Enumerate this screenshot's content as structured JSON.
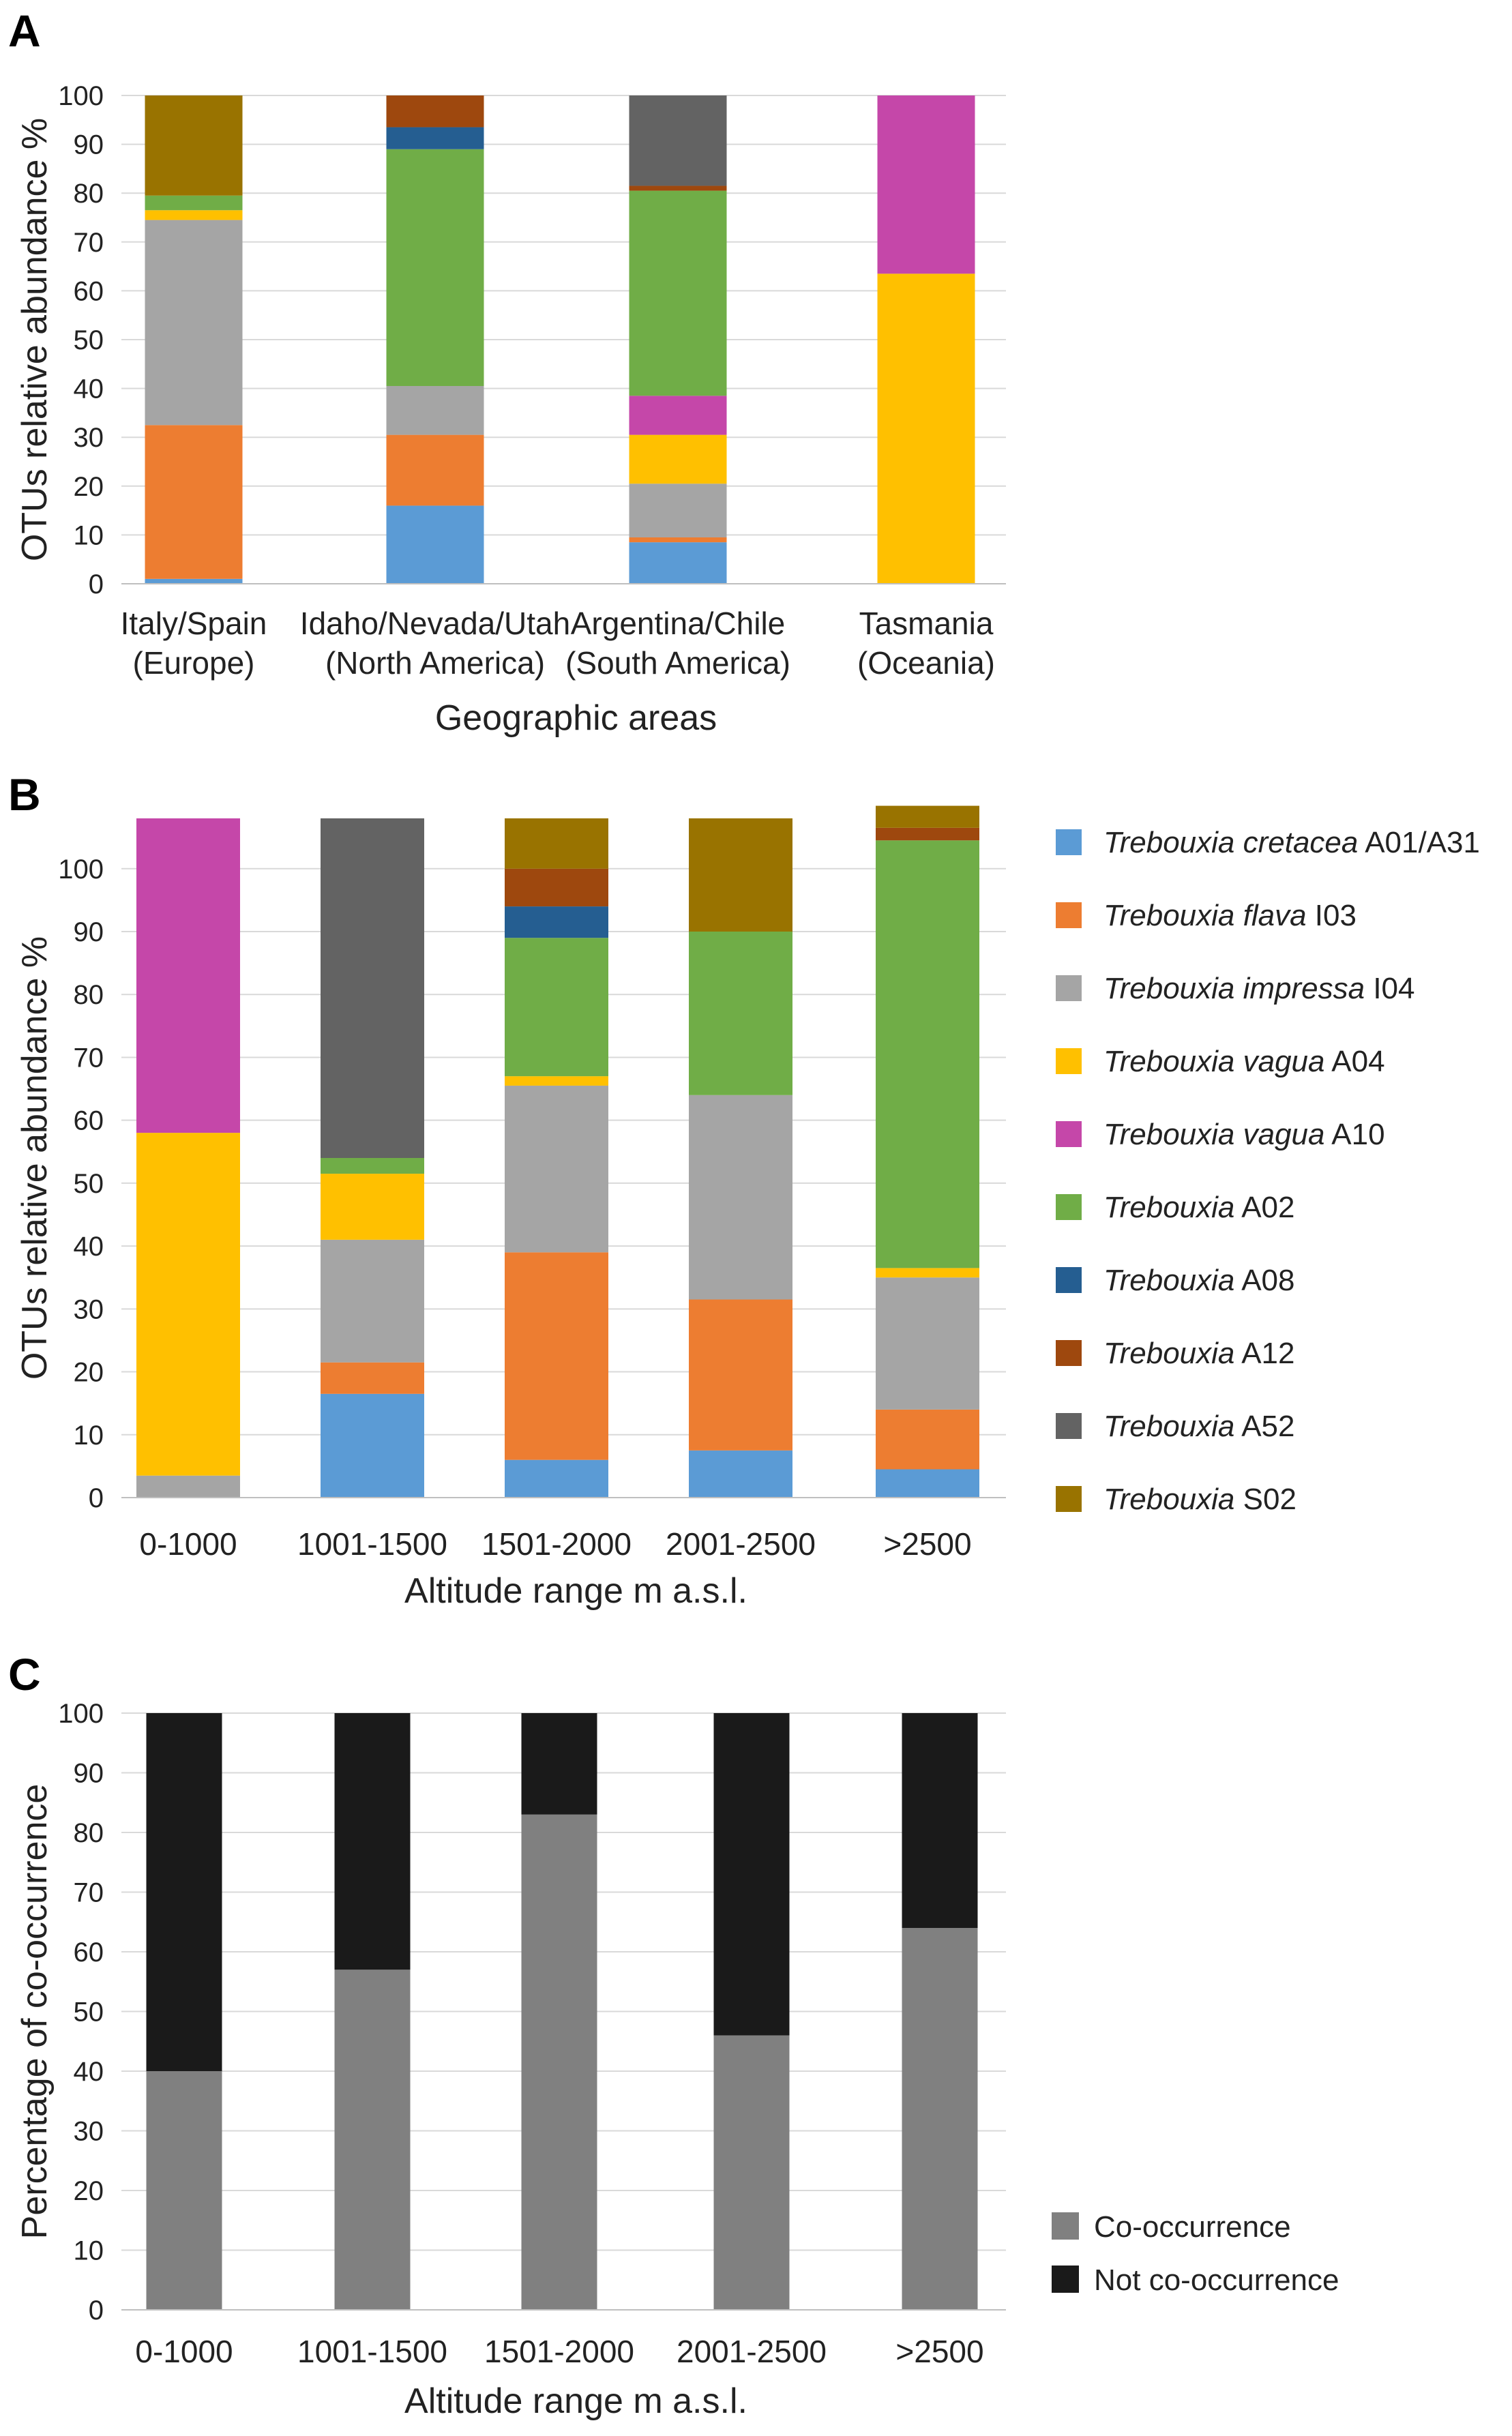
{
  "species": [
    {
      "key": "cretacea",
      "italic": "Trebouxia cretacea",
      "suffix": " A01/A31",
      "color": "#5b9bd5"
    },
    {
      "key": "flava",
      "italic": "Trebouxia flava",
      "suffix": " I03",
      "color": "#ed7d31"
    },
    {
      "key": "impressa",
      "italic": "Trebouxia impressa",
      "suffix": " I04",
      "color": "#a5a5a5"
    },
    {
      "key": "vagua_A04",
      "italic": "Trebouxia vagua",
      "suffix": " A04",
      "color": "#ffc000"
    },
    {
      "key": "vagua_A10",
      "italic": "Trebouxia vagua",
      "suffix": " A10",
      "color": "#c547a9"
    },
    {
      "key": "A02",
      "italic": "Trebouxia",
      "suffix": " A02",
      "color": "#70ad47"
    },
    {
      "key": "A08",
      "italic": "Trebouxia",
      "suffix": " A08",
      "color": "#255e91"
    },
    {
      "key": "A12",
      "italic": "Trebouxia",
      "suffix": " A12",
      "color": "#9e480e"
    },
    {
      "key": "A52",
      "italic": "Trebouxia",
      "suffix": " A52",
      "color": "#636363"
    },
    {
      "key": "S02",
      "italic": "Trebouxia",
      "suffix": " S02",
      "color": "#997300"
    }
  ],
  "chart_data": [
    {
      "panel": "A",
      "type": "bar",
      "stacked": true,
      "ylabel": "OTUs relative abundance %",
      "xlabel": "Geographic areas",
      "ylim": [
        0,
        100
      ],
      "yticks": [
        "0",
        "10",
        "20",
        "30",
        "40",
        "50",
        "60",
        "70",
        "80",
        "90",
        "100"
      ],
      "categories": [
        [
          "Italy/Spain",
          "(Europe)"
        ],
        [
          "Idaho/Nevada/Utah",
          "(North America)"
        ],
        [
          "Argentina/Chile",
          "(South America)"
        ],
        [
          "Tasmania",
          "(Oceania)"
        ]
      ],
      "series": [
        {
          "name": "Trebouxia cretacea A01/A31",
          "values": [
            1,
            16,
            8.5,
            0
          ]
        },
        {
          "name": "Trebouxia flava I03",
          "values": [
            31.5,
            14.5,
            1,
            0
          ]
        },
        {
          "name": "Trebouxia impressa I04",
          "values": [
            42,
            10,
            11,
            0
          ]
        },
        {
          "name": "Trebouxia vagua A04",
          "values": [
            2,
            0,
            10,
            63.5
          ]
        },
        {
          "name": "Trebouxia vagua A10",
          "values": [
            0,
            0,
            8,
            36.5
          ]
        },
        {
          "name": "Trebouxia A02",
          "values": [
            3,
            48.5,
            42,
            0
          ]
        },
        {
          "name": "Trebouxia A08",
          "values": [
            0,
            4.5,
            0,
            0
          ]
        },
        {
          "name": "Trebouxia A12",
          "values": [
            0,
            6.5,
            1,
            0
          ]
        },
        {
          "name": "Trebouxia A52",
          "values": [
            0,
            0,
            18.5,
            0
          ]
        },
        {
          "name": "Trebouxia S02",
          "values": [
            20.5,
            0,
            0,
            0
          ]
        }
      ]
    },
    {
      "panel": "B",
      "type": "bar",
      "stacked": true,
      "ylabel": "OTUs relative abundance %",
      "xlabel": "Altitude range m a.s.l.",
      "ylim": [
        0,
        108
      ],
      "yticks": [
        "0",
        "10",
        "20",
        "30",
        "40",
        "50",
        "60",
        "70",
        "80",
        "90",
        "100"
      ],
      "categories": [
        [
          "0-1000"
        ],
        [
          "1001-1500"
        ],
        [
          "1501-2000"
        ],
        [
          "2001-2500"
        ],
        [
          ">2500"
        ]
      ],
      "series": [
        {
          "name": "Trebouxia cretacea A01/A31",
          "values": [
            0,
            16.5,
            6,
            7.5,
            4.5
          ]
        },
        {
          "name": "Trebouxia flava I03",
          "values": [
            0,
            5,
            33,
            24,
            9.5
          ]
        },
        {
          "name": "Trebouxia impressa I04",
          "values": [
            3.5,
            19.5,
            26.5,
            32.5,
            21
          ]
        },
        {
          "name": "Trebouxia vagua A04",
          "values": [
            54.5,
            10.5,
            1.5,
            0,
            1.5
          ]
        },
        {
          "name": "Trebouxia vagua A10",
          "values": [
            50,
            0,
            0,
            0,
            0
          ]
        },
        {
          "name": "Trebouxia A02",
          "values": [
            0,
            2.5,
            22,
            26,
            68
          ]
        },
        {
          "name": "Trebouxia A08",
          "values": [
            0,
            0,
            5,
            0,
            0
          ]
        },
        {
          "name": "Trebouxia A12",
          "values": [
            0,
            0,
            6,
            0,
            2
          ]
        },
        {
          "name": "Trebouxia A52",
          "values": [
            0,
            54,
            0,
            0,
            0
          ]
        },
        {
          "name": "Trebouxia S02",
          "values": [
            0,
            0,
            8,
            18,
            3.5
          ]
        }
      ]
    },
    {
      "panel": "C",
      "type": "bar",
      "stacked": true,
      "ylabel": "Percentage of co-occurrence",
      "xlabel": "Altitude range m a.s.l.",
      "ylim": [
        0,
        100
      ],
      "yticks": [
        "0",
        "10",
        "20",
        "30",
        "40",
        "50",
        "60",
        "70",
        "80",
        "90",
        "100"
      ],
      "categories": [
        [
          "0-1000"
        ],
        [
          "1001-1500"
        ],
        [
          "1501-2000"
        ],
        [
          "2001-2500"
        ],
        [
          ">2500"
        ]
      ],
      "series": [
        {
          "name": "Co-occurrence",
          "values": [
            40,
            57,
            83,
            46,
            64
          ],
          "color": "#808080"
        },
        {
          "name": "Not co-occurrence",
          "values": [
            60,
            43,
            17,
            54,
            36
          ],
          "color": "#1a1a1a"
        }
      ]
    }
  ]
}
